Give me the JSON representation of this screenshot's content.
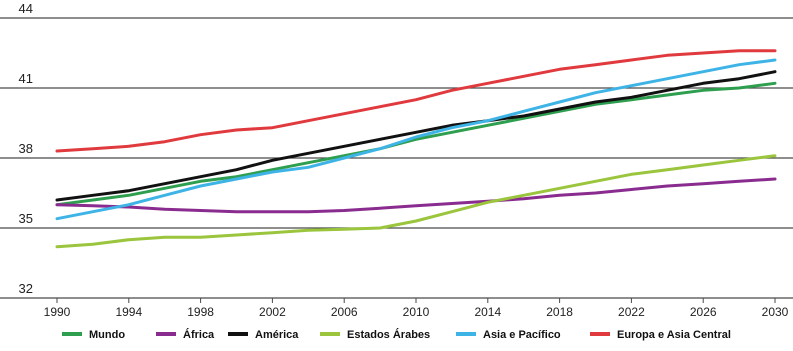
{
  "chart_data": {
    "type": "line",
    "x": [
      1990,
      1992,
      1994,
      1996,
      1998,
      2000,
      2002,
      2004,
      2006,
      2008,
      2010,
      2012,
      2014,
      2016,
      2018,
      2020,
      2022,
      2024,
      2026,
      2028,
      2030
    ],
    "x_ticks": [
      "1990",
      "1994",
      "1998",
      "2002",
      "2006",
      "2010",
      "2014",
      "2018",
      "2022",
      "2026",
      "2030"
    ],
    "y_ticks": [
      "32",
      "35",
      "38",
      "41",
      "44"
    ],
    "ylim": [
      32,
      44
    ],
    "xlim": [
      1990,
      2030
    ],
    "grid": "horizontal",
    "legend_position": "bottom",
    "series": [
      {
        "name": "Mundo",
        "color": "#2e9e4f",
        "values": [
          36.0,
          36.2,
          36.4,
          36.7,
          37.0,
          37.2,
          37.5,
          37.8,
          38.1,
          38.4,
          38.8,
          39.1,
          39.4,
          39.7,
          40.0,
          40.3,
          40.5,
          40.7,
          40.9,
          41.0,
          41.2
        ]
      },
      {
        "name": "África",
        "color": "#8a2c8f",
        "values": [
          36.0,
          35.95,
          35.9,
          35.8,
          35.75,
          35.7,
          35.7,
          35.7,
          35.75,
          35.85,
          35.95,
          36.05,
          36.15,
          36.25,
          36.4,
          36.5,
          36.65,
          36.8,
          36.9,
          37.0,
          37.1
        ]
      },
      {
        "name": "América",
        "color": "#111111",
        "values": [
          36.2,
          36.4,
          36.6,
          36.9,
          37.2,
          37.5,
          37.9,
          38.2,
          38.5,
          38.8,
          39.1,
          39.4,
          39.6,
          39.8,
          40.1,
          40.4,
          40.6,
          40.9,
          41.2,
          41.4,
          41.7
        ]
      },
      {
        "name": "Estados Árabes",
        "color": "#9ac53c",
        "values": [
          34.2,
          34.3,
          34.5,
          34.6,
          34.6,
          34.7,
          34.8,
          34.9,
          34.95,
          35.0,
          35.3,
          35.7,
          36.1,
          36.4,
          36.7,
          37.0,
          37.3,
          37.5,
          37.7,
          37.9,
          38.1
        ]
      },
      {
        "name": "Asia e Pacífico",
        "color": "#3eb4e6",
        "values": [
          35.4,
          35.7,
          36.0,
          36.4,
          36.8,
          37.1,
          37.4,
          37.6,
          38.0,
          38.4,
          38.9,
          39.3,
          39.6,
          40.0,
          40.4,
          40.8,
          41.1,
          41.4,
          41.7,
          42.0,
          42.2
        ]
      },
      {
        "name": "Europa e Asia Central",
        "color": "#e03a3e",
        "values": [
          38.3,
          38.4,
          38.5,
          38.7,
          39.0,
          39.2,
          39.3,
          39.6,
          39.9,
          40.2,
          40.5,
          40.9,
          41.2,
          41.5,
          41.8,
          42.0,
          42.2,
          42.4,
          42.5,
          42.6,
          42.6
        ]
      }
    ]
  }
}
